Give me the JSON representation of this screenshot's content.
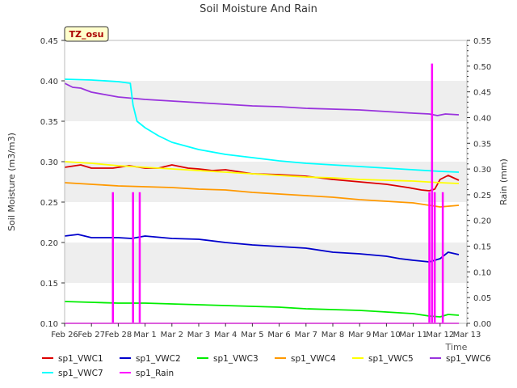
{
  "chart_data": {
    "type": "line",
    "title": "Soil Moisture And Rain",
    "site_badge": "TZ_osu",
    "xlabel": "Time",
    "ylabel": "Soil Moisture (m3/m3)",
    "y2label": "Rain (mm)",
    "x_ticks": [
      "Feb 26",
      "Feb 27",
      "Feb 28",
      "Mar 1",
      "Mar 2",
      "Mar 3",
      "Mar 4",
      "Mar 5",
      "Mar 6",
      "Mar 7",
      "Mar 8",
      "Mar 9",
      "Mar 10",
      "Mar 11",
      "Mar 12",
      "Mar 13"
    ],
    "xlim": [
      0,
      15
    ],
    "ylim": [
      0.1,
      0.45
    ],
    "y_ticks": [
      "0.10",
      "0.15",
      "0.20",
      "0.25",
      "0.30",
      "0.35",
      "0.40",
      "0.45"
    ],
    "y2lim": [
      0.0,
      0.55
    ],
    "y2_ticks": [
      "0.00",
      "0.05",
      "0.10",
      "0.15",
      "0.20",
      "0.25",
      "0.30",
      "0.35",
      "0.40",
      "0.45",
      "0.50",
      "0.55"
    ],
    "grid": "horizontal shaded bands",
    "legend_position": "bottom",
    "colors": {
      "sp1_VWC1": "#dd0000",
      "sp1_VWC2": "#0000cc",
      "sp1_VWC3": "#00ee00",
      "sp1_VWC4": "#ff9900",
      "sp1_VWC5": "#ffff00",
      "sp1_VWC6": "#9933dd",
      "sp1_VWC7": "#00ffff",
      "sp1_Rain": "#ff00ff"
    },
    "series": [
      {
        "name": "sp1_VWC1",
        "axis": "left",
        "x": [
          0.0,
          0.6,
          1.0,
          1.8,
          2.4,
          3.0,
          3.5,
          4.0,
          4.6,
          5.0,
          5.5,
          6.0,
          7.0,
          8.0,
          9.0,
          10.0,
          11.0,
          12.0,
          12.8,
          13.3,
          13.6,
          13.8,
          14.0,
          14.3,
          14.5,
          14.7
        ],
        "y": [
          0.293,
          0.296,
          0.292,
          0.292,
          0.295,
          0.292,
          0.292,
          0.296,
          0.292,
          0.291,
          0.289,
          0.29,
          0.285,
          0.284,
          0.282,
          0.278,
          0.275,
          0.272,
          0.268,
          0.265,
          0.264,
          0.266,
          0.278,
          0.283,
          0.28,
          0.277
        ]
      },
      {
        "name": "sp1_VWC2",
        "axis": "left",
        "x": [
          0.0,
          0.5,
          1.0,
          2.0,
          2.5,
          3.0,
          4.0,
          5.0,
          6.0,
          7.0,
          8.0,
          9.0,
          10.0,
          11.0,
          12.0,
          12.5,
          13.0,
          13.6,
          14.0,
          14.3,
          14.7
        ],
        "y": [
          0.208,
          0.21,
          0.206,
          0.206,
          0.205,
          0.208,
          0.205,
          0.204,
          0.2,
          0.197,
          0.195,
          0.193,
          0.188,
          0.186,
          0.183,
          0.18,
          0.178,
          0.176,
          0.18,
          0.188,
          0.185
        ]
      },
      {
        "name": "sp1_VWC3",
        "axis": "left",
        "x": [
          0.0,
          1.0,
          2.0,
          3.0,
          4.0,
          5.0,
          6.0,
          7.0,
          8.0,
          9.0,
          10.0,
          11.0,
          12.0,
          13.0,
          13.6,
          14.0,
          14.3,
          14.7
        ],
        "y": [
          0.127,
          0.126,
          0.125,
          0.125,
          0.124,
          0.123,
          0.122,
          0.121,
          0.12,
          0.118,
          0.117,
          0.116,
          0.114,
          0.112,
          0.109,
          0.108,
          0.111,
          0.11
        ]
      },
      {
        "name": "sp1_VWC4",
        "axis": "left",
        "x": [
          0.0,
          1.0,
          2.0,
          3.0,
          4.0,
          5.0,
          6.0,
          7.0,
          8.0,
          9.0,
          10.0,
          11.0,
          12.0,
          13.0,
          13.6,
          14.0,
          14.7
        ],
        "y": [
          0.274,
          0.272,
          0.27,
          0.269,
          0.268,
          0.266,
          0.265,
          0.262,
          0.26,
          0.258,
          0.256,
          0.253,
          0.251,
          0.249,
          0.246,
          0.244,
          0.246
        ]
      },
      {
        "name": "sp1_VWC5",
        "axis": "left",
        "x": [
          0.0,
          1.0,
          2.0,
          3.0,
          4.0,
          5.0,
          6.0,
          7.0,
          8.0,
          9.0,
          10.0,
          11.0,
          12.0,
          13.0,
          14.0,
          14.7
        ],
        "y": [
          0.3,
          0.298,
          0.295,
          0.293,
          0.291,
          0.289,
          0.287,
          0.285,
          0.283,
          0.281,
          0.28,
          0.278,
          0.277,
          0.276,
          0.274,
          0.273
        ]
      },
      {
        "name": "sp1_VWC6",
        "axis": "left",
        "x": [
          0.0,
          0.3,
          0.6,
          1.0,
          1.5,
          2.0,
          3.0,
          4.0,
          5.0,
          6.0,
          7.0,
          8.0,
          9.0,
          10.0,
          11.0,
          12.0,
          13.0,
          13.6,
          13.9,
          14.2,
          14.7
        ],
        "y": [
          0.397,
          0.392,
          0.391,
          0.386,
          0.383,
          0.38,
          0.377,
          0.375,
          0.373,
          0.371,
          0.369,
          0.368,
          0.366,
          0.365,
          0.364,
          0.362,
          0.36,
          0.359,
          0.357,
          0.359,
          0.358
        ]
      },
      {
        "name": "sp1_VWC7",
        "axis": "left",
        "x": [
          0.0,
          1.0,
          2.0,
          2.45,
          2.55,
          2.7,
          3.0,
          3.5,
          4.0,
          5.0,
          6.0,
          7.0,
          8.0,
          9.0,
          10.0,
          11.0,
          12.0,
          13.0,
          14.0,
          14.7
        ],
        "y": [
          0.402,
          0.401,
          0.399,
          0.397,
          0.37,
          0.35,
          0.342,
          0.332,
          0.324,
          0.315,
          0.309,
          0.305,
          0.301,
          0.298,
          0.296,
          0.294,
          0.292,
          0.29,
          0.288,
          0.287
        ]
      },
      {
        "name": "sp1_Rain",
        "axis": "right",
        "x": [
          0.0,
          1.8,
          2.55,
          2.8,
          13.6,
          13.7,
          13.8,
          14.1
        ],
        "y": [
          0.0,
          0.255,
          0.255,
          0.255,
          0.255,
          0.505,
          0.255,
          0.255
        ]
      }
    ],
    "legend": [
      "sp1_VWC1",
      "sp1_VWC2",
      "sp1_VWC3",
      "sp1_VWC4",
      "sp1_VWC5",
      "sp1_VWC6",
      "sp1_VWC7",
      "sp1_Rain"
    ]
  }
}
